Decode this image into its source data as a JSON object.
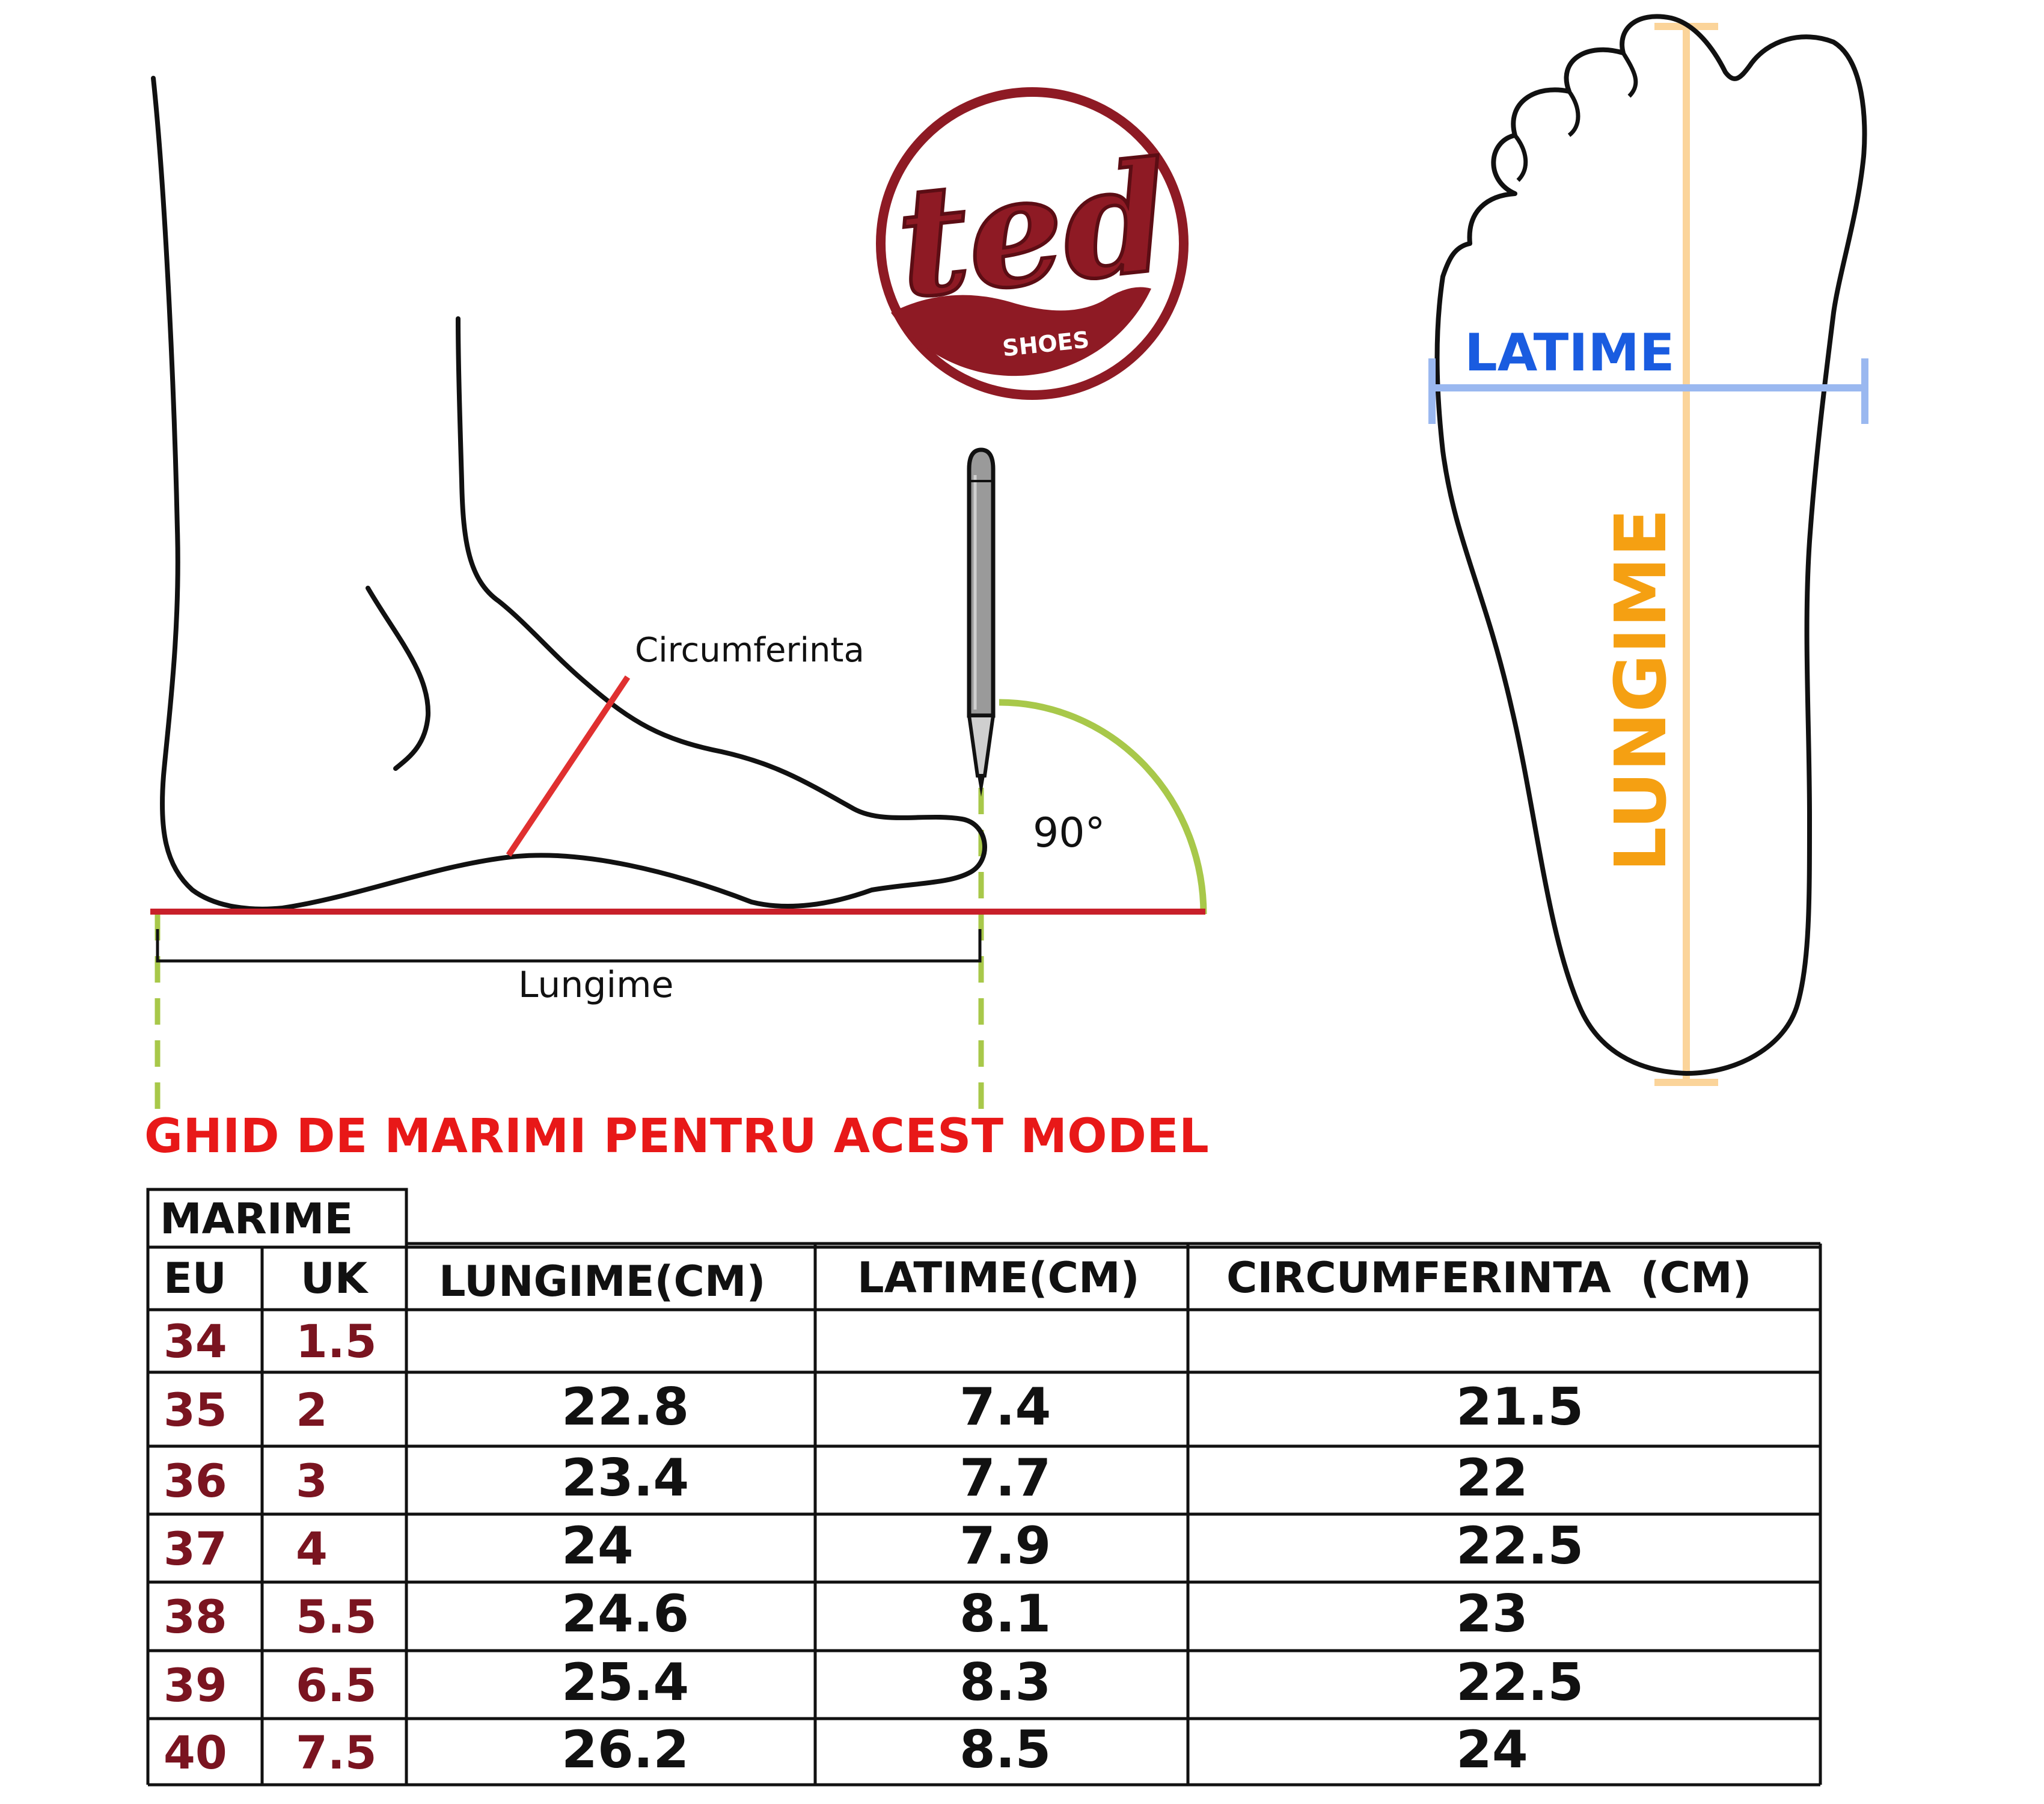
{
  "brand": {
    "name": "ted",
    "sub": "SHOES",
    "colors": {
      "primary": "#8e1a24",
      "dark": "#5c0d14",
      "white": "#ffffff"
    }
  },
  "diagram_side": {
    "label_circumference": "Circumferinta",
    "label_length": "Lungime",
    "label_angle": "90°",
    "colors": {
      "floor_line": "#c8202a",
      "measure_line": "#e03030",
      "guides": "#a8c84a",
      "outline": "#111111",
      "pencil": "#9a9a9a"
    }
  },
  "diagram_top": {
    "label_width": "LATIME",
    "label_length": "LUNGIME",
    "colors": {
      "width_line": "#9ab8f0",
      "width_text": "#1a5ce0",
      "length_line": "#fbd49a",
      "length_text": "#f5a012"
    }
  },
  "title": "GHID DE MARIMI PENTRU ACEST MODEL",
  "table": {
    "group_header": "MARIME",
    "headers": {
      "eu": "EU",
      "uk": "UK",
      "length": "LUNGIME(CM)",
      "width": "LATIME(CM)",
      "circumference": "CIRCUMFERINTA  (CM)"
    },
    "rows": [
      {
        "eu": "34",
        "uk": "1.5",
        "length": "",
        "width": "",
        "circumference": ""
      },
      {
        "eu": "35",
        "uk": "2",
        "length": "22.8",
        "width": "7.4",
        "circumference": "21.5"
      },
      {
        "eu": "36",
        "uk": "3",
        "length": "23.4",
        "width": "7.7",
        "circumference": "22"
      },
      {
        "eu": "37",
        "uk": "4",
        "length": "24",
        "width": "7.9",
        "circumference": "22.5"
      },
      {
        "eu": "38",
        "uk": "5.5",
        "length": "24.6",
        "width": "8.1",
        "circumference": "23"
      },
      {
        "eu": "39",
        "uk": "6.5",
        "length": "25.4",
        "width": "8.3",
        "circumference": "22.5"
      },
      {
        "eu": "40",
        "uk": "7.5",
        "length": "26.2",
        "width": "8.5",
        "circumference": "24"
      }
    ],
    "colors": {
      "size_text": "#7a1420",
      "value_text": "#111111",
      "grid": "#111111"
    }
  }
}
